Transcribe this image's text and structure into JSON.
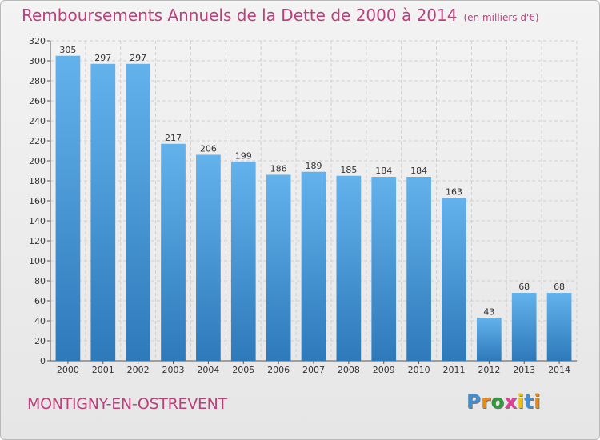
{
  "header": {
    "title": "Remboursements Annuels de la Dette de 2000 à 2014",
    "subtitle": "(en milliers d'€)"
  },
  "footer": {
    "city": "MONTIGNY-EN-OSTREVENT",
    "logo_letters": [
      "P",
      "r",
      "o",
      "x",
      "i",
      "t",
      "i"
    ],
    "logo_colors": [
      "#3f8fd6",
      "#e88a1a",
      "#2e9a3a",
      "#e63d9c",
      "#f0c000",
      "#3f8fd6",
      "#e88a1a"
    ]
  },
  "colors": {
    "bar_light": "#63b2ec",
    "bar_dark": "#2e79ba",
    "accent": "#bc3f7c",
    "grid": "#cfcfcf"
  },
  "chart_data": {
    "type": "bar",
    "title": "Remboursements Annuels de la Dette de 2000 à 2014",
    "xlabel": "",
    "ylabel": "",
    "ylim": [
      0,
      320
    ],
    "ytick_step": 20,
    "categories": [
      "2000",
      "2001",
      "2002",
      "2003",
      "2004",
      "2005",
      "2006",
      "2007",
      "2008",
      "2009",
      "2010",
      "2011",
      "2012",
      "2013",
      "2014"
    ],
    "values": [
      305,
      297,
      297,
      217,
      206,
      199,
      186,
      189,
      185,
      184,
      184,
      163,
      43,
      68,
      68
    ],
    "grid": true
  }
}
